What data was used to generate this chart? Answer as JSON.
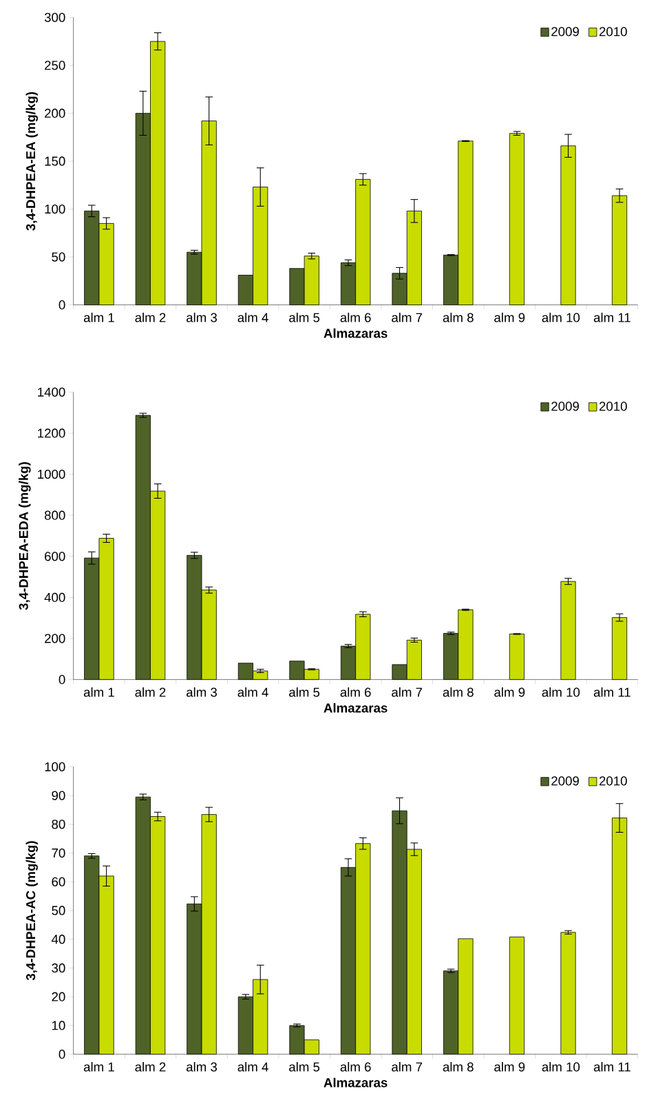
{
  "chart_data": [
    {
      "type": "bar",
      "ylabel": "3,4-DHPEA-EA (mg/kg)",
      "xlabel": "Almazaras",
      "categories": [
        "alm 1",
        "alm 2",
        "alm 3",
        "alm 4",
        "alm 5",
        "alm 6",
        "alm 7",
        "alm 8",
        "alm 9",
        "alm 10",
        "alm 11"
      ],
      "ylim": [
        0,
        300
      ],
      "yticks": [
        0,
        50,
        100,
        150,
        200,
        250,
        300
      ],
      "legend": "top right",
      "series": [
        {
          "name": "2009",
          "color": "#4f6228",
          "values": [
            98,
            200,
            55,
            31,
            38,
            44,
            33,
            52,
            null,
            null,
            null
          ],
          "errors": [
            6,
            23,
            2,
            null,
            null,
            3,
            6,
            0.5,
            null,
            null,
            null
          ]
        },
        {
          "name": "2010",
          "color": "#c8dc00",
          "values": [
            85,
            275,
            192,
            123,
            51,
            131,
            98,
            171,
            179,
            166,
            114
          ],
          "errors": [
            6,
            9,
            25,
            20,
            3,
            6,
            12,
            0.5,
            2,
            12,
            7
          ]
        }
      ]
    },
    {
      "type": "bar",
      "ylabel": "3,4-DHPEA-EDA (mg/kg)",
      "xlabel": "Almazaras",
      "categories": [
        "alm 1",
        "alm 2",
        "alm 3",
        "alm 4",
        "alm 5",
        "alm 6",
        "alm 7",
        "alm 8",
        "alm 9",
        "alm 10",
        "alm 11"
      ],
      "ylim": [
        0,
        1400
      ],
      "yticks": [
        0,
        200,
        400,
        600,
        800,
        1000,
        1200,
        1400
      ],
      "legend": "top right",
      "series": [
        {
          "name": "2009",
          "color": "#4f6228",
          "values": [
            592,
            1287,
            605,
            80,
            90,
            163,
            73,
            225,
            null,
            null,
            null
          ],
          "errors": [
            30,
            10,
            15,
            null,
            null,
            8,
            null,
            6,
            null,
            null,
            null
          ]
        },
        {
          "name": "2010",
          "color": "#c8dc00",
          "values": [
            688,
            918,
            436,
            42,
            50,
            318,
            192,
            340,
            222,
            478,
            302
          ],
          "errors": [
            20,
            35,
            15,
            8,
            3,
            12,
            10,
            3,
            2,
            15,
            18
          ]
        }
      ]
    },
    {
      "type": "bar",
      "ylabel": "3,4-DHPEA-AC (mg/kg)",
      "xlabel": "Almazaras",
      "categories": [
        "alm 1",
        "alm 2",
        "alm 3",
        "alm 4",
        "alm 5",
        "alm 6",
        "alm 7",
        "alm 8",
        "alm 9",
        "alm 10",
        "alm 11"
      ],
      "ylim": [
        0,
        100
      ],
      "yticks": [
        0,
        10,
        20,
        30,
        40,
        50,
        60,
        70,
        80,
        90,
        100
      ],
      "legend": "top right",
      "series": [
        {
          "name": "2009",
          "color": "#4f6228",
          "values": [
            69,
            89.5,
            52.3,
            20,
            10,
            65,
            84.7,
            29,
            null,
            null,
            null
          ],
          "errors": [
            0.8,
            1,
            2.5,
            0.8,
            0.5,
            3,
            4.5,
            0.6,
            null,
            null,
            null
          ]
        },
        {
          "name": "2010",
          "color": "#c8dc00",
          "values": [
            62,
            82.7,
            83.4,
            26,
            5,
            73.3,
            71.3,
            40.2,
            40.8,
            42.4,
            82.2
          ],
          "errors": [
            3.5,
            1.5,
            2.5,
            5,
            null,
            2,
            2.2,
            null,
            null,
            0.6,
            5
          ]
        }
      ]
    }
  ]
}
